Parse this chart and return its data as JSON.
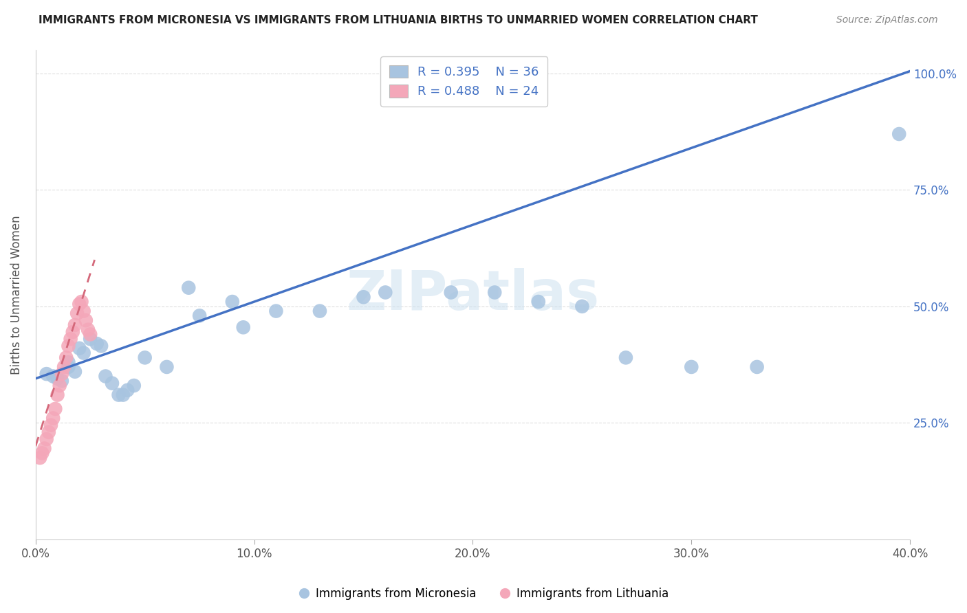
{
  "title": "IMMIGRANTS FROM MICRONESIA VS IMMIGRANTS FROM LITHUANIA BIRTHS TO UNMARRIED WOMEN CORRELATION CHART",
  "source": "Source: ZipAtlas.com",
  "ylabel": "Births to Unmarried Women",
  "xlim": [
    0.0,
    0.4
  ],
  "ylim": [
    0.0,
    1.05
  ],
  "xticks": [
    0.0,
    0.1,
    0.2,
    0.3,
    0.4
  ],
  "xtick_labels": [
    "0.0%",
    "10.0%",
    "20.0%",
    "30.0%",
    "40.0%"
  ],
  "yticks": [
    0.25,
    0.5,
    0.75,
    1.0
  ],
  "ytick_labels": [
    "25.0%",
    "50.0%",
    "75.0%",
    "100.0%"
  ],
  "legend_labels": [
    "Immigrants from Micronesia",
    "Immigrants from Lithuania"
  ],
  "legend_R": [
    0.395,
    0.488
  ],
  "legend_N": [
    36,
    24
  ],
  "micronesia_color": "#a8c4e0",
  "lithuania_color": "#f4a7b9",
  "micronesia_line_color": "#4472c4",
  "lithuania_line_color": "#d4687a",
  "watermark_text": "ZIPatlas",
  "micronesia_x": [
    0.005,
    0.008,
    0.01,
    0.012,
    0.015,
    0.015,
    0.018,
    0.02,
    0.022,
    0.025,
    0.028,
    0.03,
    0.032,
    0.035,
    0.038,
    0.04,
    0.042,
    0.045,
    0.05,
    0.06,
    0.07,
    0.075,
    0.09,
    0.095,
    0.11,
    0.13,
    0.15,
    0.16,
    0.19,
    0.21,
    0.23,
    0.25,
    0.27,
    0.3,
    0.33,
    0.395
  ],
  "micronesia_y": [
    0.355,
    0.35,
    0.345,
    0.34,
    0.38,
    0.37,
    0.36,
    0.41,
    0.4,
    0.43,
    0.42,
    0.415,
    0.35,
    0.335,
    0.31,
    0.31,
    0.32,
    0.33,
    0.39,
    0.37,
    0.54,
    0.48,
    0.51,
    0.455,
    0.49,
    0.49,
    0.52,
    0.53,
    0.53,
    0.53,
    0.51,
    0.5,
    0.39,
    0.37,
    0.37,
    0.87
  ],
  "lithuania_x": [
    0.002,
    0.003,
    0.004,
    0.005,
    0.006,
    0.007,
    0.008,
    0.009,
    0.01,
    0.011,
    0.012,
    0.013,
    0.014,
    0.015,
    0.016,
    0.017,
    0.018,
    0.019,
    0.02,
    0.021,
    0.022,
    0.023,
    0.024,
    0.025
  ],
  "lithuania_y": [
    0.175,
    0.185,
    0.195,
    0.215,
    0.23,
    0.245,
    0.26,
    0.28,
    0.31,
    0.33,
    0.355,
    0.37,
    0.39,
    0.415,
    0.43,
    0.445,
    0.46,
    0.485,
    0.505,
    0.51,
    0.49,
    0.47,
    0.45,
    0.44
  ],
  "mic_line_x0": 0.0,
  "mic_line_y0": 0.345,
  "mic_line_x1": 0.4,
  "mic_line_y1": 1.005,
  "lit_line_x0": 0.0,
  "lit_line_y0": 0.2,
  "lit_line_x1": 0.027,
  "lit_line_y1": 0.6
}
